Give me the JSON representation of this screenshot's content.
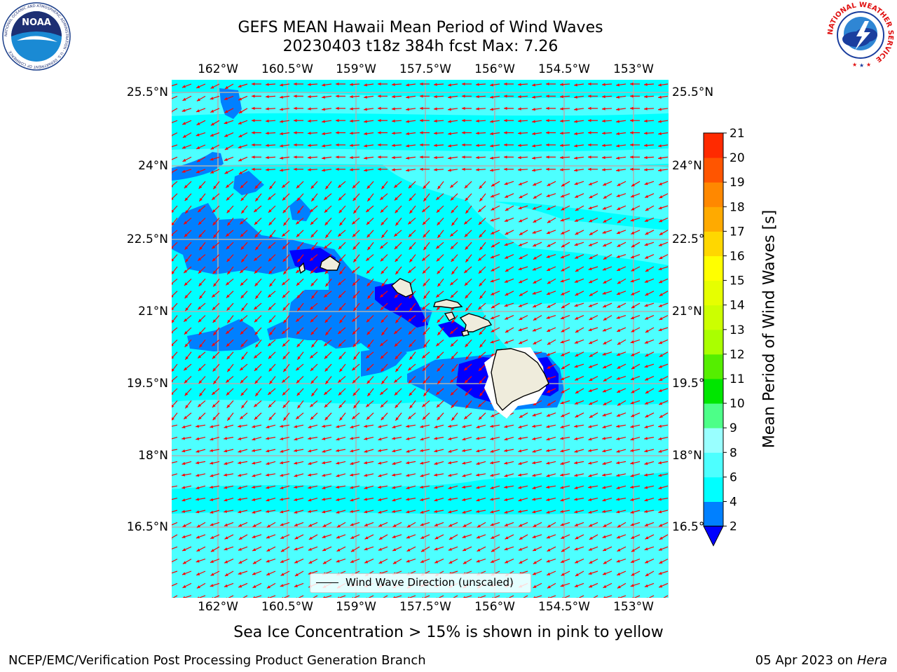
{
  "header": {
    "title_line1": "GEFS MEAN Hawaii Mean Period of Wind Waves",
    "title_line2": "20230403 t18z 384h fcst   Max: 7.26"
  },
  "logos": {
    "noaa": {
      "center_text": "NOAA",
      "ring_text": "NATIONAL OCEANIC AND ATMOSPHERIC ADMINISTRATION · U.S. DEPARTMENT OF COMMERCE"
    },
    "nws": {
      "ring_text": "NATIONAL WEATHER SERVICE"
    }
  },
  "map": {
    "lon_labels": [
      "162°W",
      "160.5°W",
      "159°W",
      "157.5°W",
      "156°W",
      "154.5°W",
      "153°W"
    ],
    "lat_labels": [
      "25.5°N",
      "24°N",
      "22.5°N",
      "21°N",
      "19.5°N",
      "18°N",
      "16.5°N"
    ],
    "legend_label": "Wind Wave Direction (unscaled)",
    "colors": {
      "ocean_4_6": "#00ffff",
      "ocean_6_8": "#4dffff",
      "ocean_2_4": "#0080ff",
      "ocean_lt_2": "#0000ff",
      "land": "#efecdc",
      "arrows": "#ff0000",
      "grid": "#b0b0b0"
    }
  },
  "colorbar": {
    "title": "Mean Period of Wind Waves [s]",
    "levels": [
      2,
      4,
      6,
      8,
      9,
      10,
      11,
      12,
      13,
      14,
      15,
      16,
      17,
      18,
      19,
      20,
      21
    ],
    "colors": [
      "#0080ff",
      "#00ffff",
      "#4dffff",
      "#99ffff",
      "#4dff88",
      "#00e600",
      "#55ee00",
      "#aaff00",
      "#ccff00",
      "#e6ff00",
      "#ffff00",
      "#ffd700",
      "#ffaa00",
      "#ff8800",
      "#ff5500",
      "#ff2a00"
    ],
    "under_color": "#0000ff"
  },
  "footer": {
    "ice_note": "Sea Ice Concentration > 15% is shown in pink to yellow",
    "left": "NCEP/EMC/Verification Post Processing Product Generation Branch",
    "right_prefix": "05 Apr 2023 on ",
    "right_host": "Hera"
  }
}
